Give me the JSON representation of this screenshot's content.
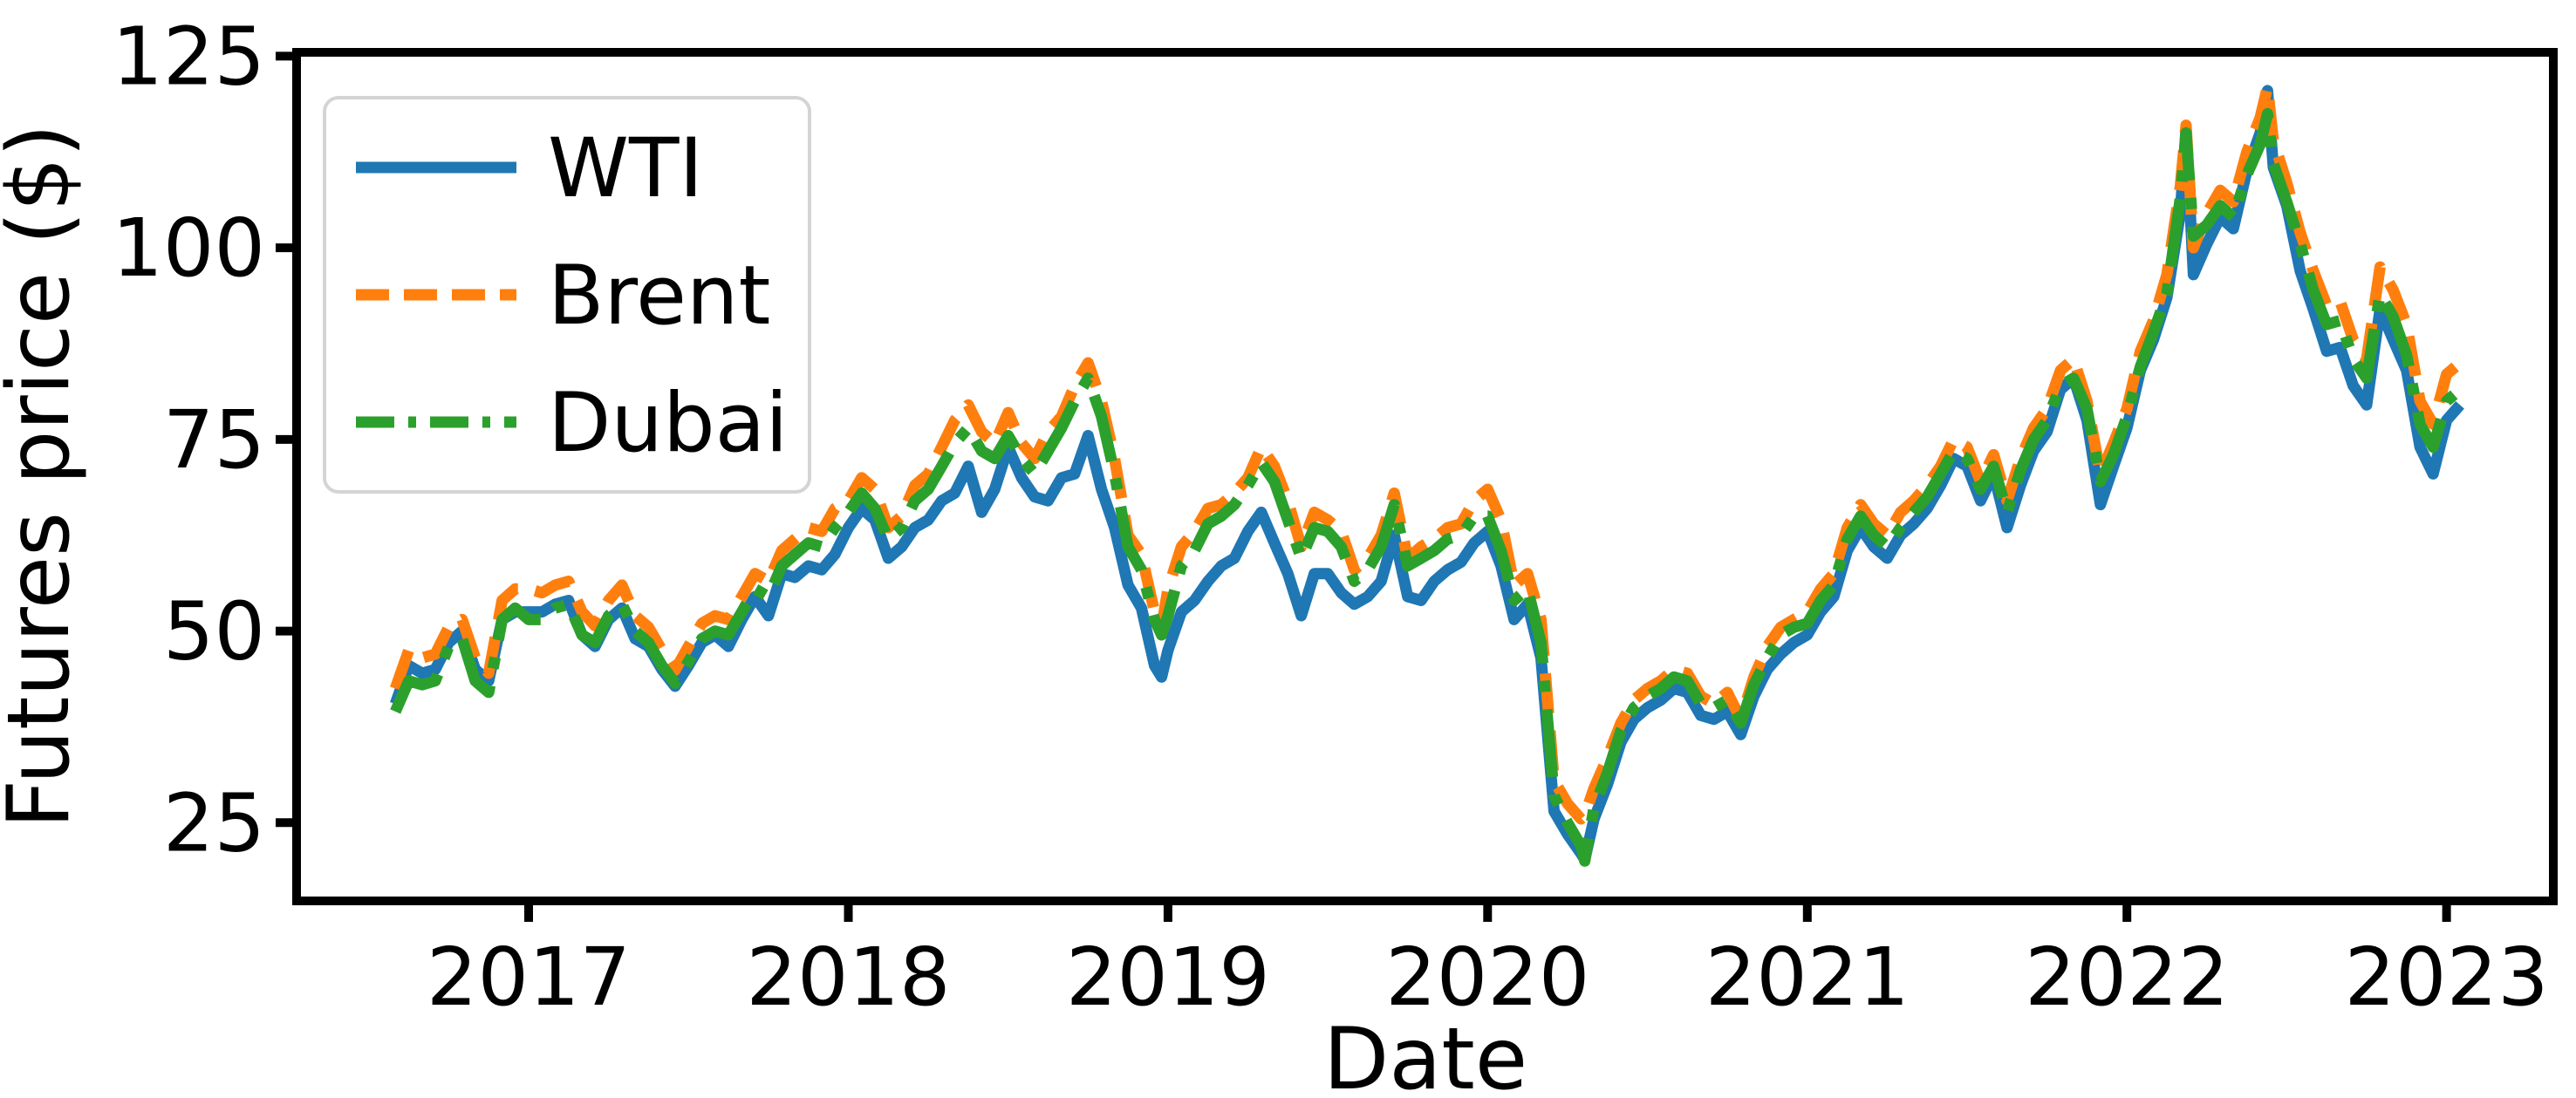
{
  "figure": {
    "background": "#ffffff",
    "frame_color": "#000000"
  },
  "axes": {
    "xlabel": "Date",
    "ylabel": "Futures price ($)",
    "xticklabels": [
      "2017",
      "2018",
      "2019",
      "2020",
      "2021",
      "2022",
      "2023"
    ],
    "yticklabels": [
      "25",
      "50",
      "75",
      "100",
      "125"
    ],
    "xticks": [
      2017,
      2018,
      2019,
      2020,
      2021,
      2022,
      2023
    ],
    "yticks": [
      25,
      50,
      75,
      100,
      125
    ],
    "xlim": [
      2016.274,
      2023.334
    ],
    "ylim": [
      14.8,
      125.5
    ],
    "grid": false
  },
  "legend": {
    "position": "upper left",
    "entries": [
      {
        "label": "WTI",
        "color": "#1f77b4",
        "dash": "solid"
      },
      {
        "label": "Brent",
        "color": "#ff7f0e",
        "dash": "dashed"
      },
      {
        "label": "Dubai",
        "color": "#2ca02c",
        "dash": "dashdot"
      }
    ]
  },
  "chart_data": {
    "type": "line",
    "title": "",
    "xlabel": "Date",
    "ylabel": "Futures price ($)",
    "xlim": [
      2016.274,
      2023.334
    ],
    "ylim": [
      14.8,
      125.5
    ],
    "legend_position": "upper left",
    "grid": false,
    "x": [
      2016.583,
      2016.625,
      2016.667,
      2016.708,
      2016.75,
      2016.792,
      2016.833,
      2016.875,
      2016.917,
      2016.958,
      2017.0,
      2017.042,
      2017.083,
      2017.125,
      2017.167,
      2017.208,
      2017.25,
      2017.292,
      2017.333,
      2017.375,
      2017.417,
      2017.458,
      2017.5,
      2017.542,
      2017.583,
      2017.625,
      2017.667,
      2017.708,
      2017.75,
      2017.792,
      2017.833,
      2017.875,
      2017.917,
      2017.958,
      2018.0,
      2018.042,
      2018.083,
      2018.125,
      2018.167,
      2018.208,
      2018.25,
      2018.292,
      2018.333,
      2018.375,
      2018.417,
      2018.458,
      2018.5,
      2018.542,
      2018.583,
      2018.625,
      2018.667,
      2018.708,
      2018.75,
      2018.792,
      2018.833,
      2018.875,
      2018.917,
      2018.958,
      2018.98,
      2019.0,
      2019.042,
      2019.083,
      2019.125,
      2019.167,
      2019.208,
      2019.25,
      2019.292,
      2019.333,
      2019.375,
      2019.417,
      2019.458,
      2019.5,
      2019.542,
      2019.583,
      2019.625,
      2019.667,
      2019.708,
      2019.75,
      2019.792,
      2019.833,
      2019.875,
      2019.917,
      2019.958,
      2020.0,
      2020.042,
      2020.083,
      2020.125,
      2020.167,
      2020.208,
      2020.25,
      2020.292,
      2020.304,
      2020.333,
      2020.375,
      2020.417,
      2020.458,
      2020.5,
      2020.542,
      2020.583,
      2020.625,
      2020.667,
      2020.708,
      2020.75,
      2020.792,
      2020.833,
      2020.875,
      2020.917,
      2020.958,
      2021.0,
      2021.042,
      2021.083,
      2021.125,
      2021.167,
      2021.208,
      2021.25,
      2021.292,
      2021.333,
      2021.375,
      2021.417,
      2021.458,
      2021.5,
      2021.542,
      2021.583,
      2021.625,
      2021.667,
      2021.708,
      2021.75,
      2021.792,
      2021.833,
      2021.875,
      2021.917,
      2021.958,
      2022.0,
      2022.042,
      2022.083,
      2022.125,
      2022.167,
      2022.185,
      2022.208,
      2022.25,
      2022.292,
      2022.333,
      2022.375,
      2022.417,
      2022.44,
      2022.458,
      2022.5,
      2022.542,
      2022.583,
      2022.625,
      2022.667,
      2022.708,
      2022.75,
      2022.792,
      2022.833,
      2022.875,
      2022.917,
      2022.958,
      2023.0,
      2023.042
    ],
    "series": [
      {
        "name": "WTI",
        "color": "#1f77b4",
        "dash": "solid",
        "linewidth": 13,
        "values": [
          40.5,
          45.5,
          44.5,
          45.0,
          48.5,
          50.0,
          45.0,
          43.5,
          51.5,
          52.5,
          52.5,
          52.5,
          53.5,
          54.0,
          49.5,
          48.0,
          51.5,
          53.0,
          49.0,
          48.0,
          45.0,
          42.8,
          45.5,
          48.5,
          49.5,
          48.0,
          51.5,
          54.5,
          52.0,
          57.5,
          57.0,
          58.5,
          58.0,
          60.0,
          63.5,
          66.0,
          64.5,
          59.5,
          61.0,
          63.5,
          64.5,
          67.0,
          68.0,
          71.5,
          65.5,
          68.5,
          74.0,
          70.0,
          67.5,
          67.0,
          70.0,
          70.5,
          75.5,
          68.5,
          63.5,
          56.0,
          53.0,
          45.5,
          44.0,
          47.5,
          52.5,
          54.0,
          56.5,
          58.5,
          59.5,
          63.0,
          65.5,
          61.5,
          57.5,
          52.0,
          57.5,
          57.5,
          55.0,
          53.5,
          54.5,
          56.5,
          62.5,
          54.5,
          54.0,
          56.5,
          58.0,
          59.0,
          61.5,
          63.0,
          58.5,
          51.5,
          53.5,
          46.5,
          26.5,
          23.5,
          21.0,
          20.2,
          25.5,
          30.0,
          35.5,
          38.5,
          40.0,
          41.0,
          42.5,
          42.0,
          39.0,
          38.5,
          39.5,
          36.5,
          41.5,
          45.0,
          47.0,
          48.5,
          49.5,
          52.5,
          54.5,
          60.5,
          63.5,
          61.0,
          59.5,
          62.5,
          64.0,
          66.0,
          69.0,
          72.5,
          71.5,
          67.0,
          70.5,
          63.5,
          69.0,
          73.5,
          76.0,
          81.5,
          83.0,
          77.5,
          66.5,
          71.5,
          76.5,
          84.0,
          88.0,
          93.5,
          104.5,
          115.5,
          96.5,
          100.5,
          104.0,
          102.5,
          110.0,
          115.0,
          120.5,
          110.5,
          105.5,
          97.0,
          92.0,
          86.5,
          87.0,
          82.0,
          79.5,
          92.0,
          88.0,
          84.0,
          74.0,
          70.5,
          77.5,
          79.5
        ]
      },
      {
        "name": "Brent",
        "color": "#ff7f0e",
        "dash": "dashed",
        "linewidth": 13,
        "values": [
          42.5,
          47.5,
          46.5,
          47.0,
          50.5,
          51.5,
          46.5,
          44.5,
          54.0,
          55.5,
          55.5,
          55.0,
          56.0,
          56.5,
          52.5,
          50.7,
          54.0,
          56.0,
          52.0,
          50.5,
          47.5,
          44.9,
          48.0,
          51.0,
          52.0,
          51.5,
          54.5,
          57.5,
          56.5,
          60.5,
          62.0,
          63.5,
          63.0,
          66.0,
          67.0,
          70.0,
          68.5,
          63.5,
          65.0,
          69.0,
          70.5,
          74.0,
          77.5,
          79.5,
          76.0,
          74.5,
          78.5,
          74.5,
          72.5,
          76.0,
          78.0,
          82.0,
          85.0,
          80.0,
          72.5,
          62.5,
          60.0,
          52.5,
          50.5,
          55.5,
          61.0,
          63.0,
          66.0,
          66.5,
          68.0,
          70.0,
          74.0,
          71.5,
          67.0,
          61.0,
          65.5,
          64.5,
          63.0,
          58.0,
          59.5,
          62.5,
          68.0,
          59.5,
          61.0,
          62.0,
          63.5,
          64.0,
          67.0,
          68.5,
          64.5,
          56.0,
          57.5,
          51.5,
          30.5,
          27.5,
          25.5,
          26.0,
          29.5,
          33.5,
          38.0,
          41.0,
          42.5,
          43.5,
          45.0,
          44.5,
          41.5,
          40.5,
          42.0,
          38.5,
          44.0,
          48.0,
          50.5,
          51.5,
          52.5,
          55.5,
          57.5,
          63.5,
          66.5,
          64.0,
          62.5,
          65.5,
          67.0,
          69.0,
          71.5,
          75.0,
          74.0,
          69.5,
          73.0,
          67.0,
          72.5,
          76.5,
          79.0,
          84.0,
          85.5,
          80.0,
          70.5,
          74.5,
          79.0,
          86.5,
          90.5,
          96.5,
          108.0,
          116.0,
          100.0,
          104.5,
          107.5,
          106.0,
          112.5,
          117.0,
          121.0,
          114.0,
          108.5,
          102.0,
          97.0,
          92.5,
          93.0,
          88.0,
          85.5,
          97.5,
          94.5,
          90.0,
          80.0,
          77.0,
          83.5,
          85.0
        ]
      },
      {
        "name": "Dubai",
        "color": "#2ca02c",
        "dash": "dashdot",
        "linewidth": 13,
        "values": [
          39.5,
          43.5,
          43.0,
          43.5,
          48.0,
          49.0,
          43.5,
          42.0,
          51.5,
          53.0,
          51.5,
          51.5,
          53.0,
          53.5,
          49.5,
          48.5,
          52.0,
          53.5,
          50.0,
          48.5,
          45.5,
          43.2,
          46.0,
          49.0,
          50.0,
          49.5,
          52.5,
          55.5,
          54.5,
          58.5,
          60.0,
          61.5,
          61.0,
          63.5,
          65.5,
          68.0,
          66.0,
          62.0,
          63.5,
          67.0,
          68.5,
          71.5,
          74.5,
          76.5,
          73.5,
          72.5,
          75.5,
          72.5,
          70.5,
          73.5,
          76.5,
          80.0,
          83.0,
          78.0,
          70.5,
          61.0,
          58.0,
          51.5,
          49.5,
          52.0,
          58.5,
          60.5,
          64.0,
          65.0,
          66.5,
          69.0,
          72.0,
          69.5,
          64.5,
          59.5,
          63.5,
          63.0,
          61.0,
          56.5,
          58.0,
          61.0,
          66.5,
          58.5,
          59.5,
          60.5,
          62.0,
          62.5,
          65.0,
          65.0,
          60.5,
          54.0,
          55.5,
          48.5,
          28.5,
          25.0,
          22.0,
          20.0,
          27.0,
          31.5,
          37.0,
          40.0,
          41.5,
          42.5,
          44.0,
          43.5,
          40.5,
          40.0,
          41.0,
          38.0,
          43.0,
          46.5,
          49.5,
          50.5,
          51.0,
          54.0,
          56.0,
          62.0,
          65.0,
          62.5,
          61.0,
          63.5,
          65.5,
          67.5,
          70.5,
          73.5,
          72.5,
          68.5,
          71.5,
          65.5,
          71.0,
          75.0,
          77.5,
          82.0,
          83.0,
          79.0,
          69.5,
          73.0,
          78.0,
          84.5,
          89.0,
          94.0,
          106.5,
          115.0,
          101.5,
          103.0,
          105.5,
          104.0,
          109.5,
          113.5,
          117.5,
          111.0,
          106.0,
          100.5,
          94.5,
          90.0,
          90.5,
          85.5,
          83.0,
          94.0,
          91.0,
          86.0,
          77.0,
          74.0,
          80.0,
          81.5
        ]
      }
    ]
  }
}
